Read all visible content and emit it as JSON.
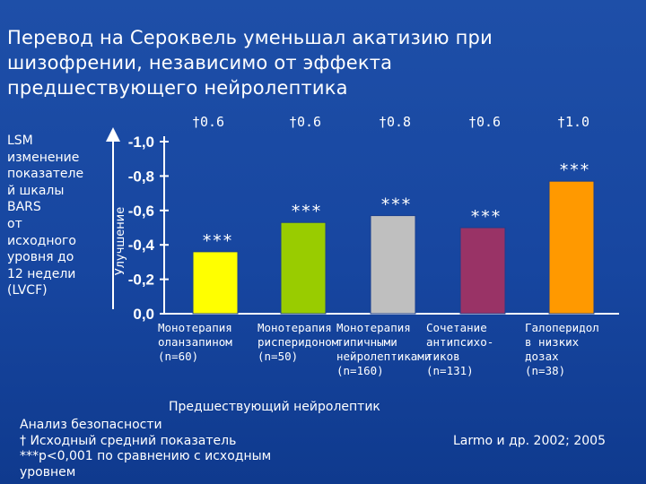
{
  "slide": {
    "title_lines": [
      "Перевод на Сероквель уменьшал акатизию при",
      "шизофрении, независимо от эффекта",
      "предшествующего нейролептика"
    ],
    "ylabel_lines": [
      "LSM",
      "изменение",
      "показателе",
      "й шкалы",
      "BARS",
      "от",
      "исходного",
      "уровня до",
      "12 недели",
      "(LVCF)"
    ],
    "improvement_label": "Улучшение",
    "previous_label": "Предшествующий нейролептик",
    "footer_lines": [
      "Анализ безопасности",
      "† Исходный средний показатель",
      "***p<0,001 по сравнению с исходным",
      "уровнем"
    ],
    "source": "Larmo и др. 2002; 2005"
  },
  "chart_data": {
    "type": "bar",
    "ylim": [
      0.0,
      -1.0
    ],
    "yticks": [
      "-1,0",
      "-0,8",
      "-0,6",
      "-0,4",
      "-0,2",
      "0,0"
    ],
    "ytick_values": [
      -1.0,
      -0.8,
      -0.6,
      -0.4,
      -0.2,
      0.0
    ],
    "categories": [
      {
        "lines": [
          "Монотерапия",
          "оланзапином",
          "(n=60)"
        ],
        "value": -0.36,
        "color": "#ffff00",
        "baseline": "†0.6",
        "significance": "***"
      },
      {
        "lines": [
          "Монотерапия",
          "рисперидоном",
          "(n=50)"
        ],
        "value": -0.53,
        "color": "#99cc00",
        "baseline": "†0.6",
        "significance": "***"
      },
      {
        "lines": [
          "Монотерапия",
          "типичными",
          "нейролептиками",
          "(n=160)"
        ],
        "value": -0.57,
        "color": "#bfbfbf",
        "baseline": "†0.8",
        "significance": "***"
      },
      {
        "lines": [
          "Сочетание",
          "антипсихо-",
          "тиков",
          "(n=131)"
        ],
        "value": -0.5,
        "color": "#993366",
        "baseline": "†0.6",
        "significance": "***"
      },
      {
        "lines": [
          "Галоперидол",
          "в низких",
          "дозах",
          "(n=38)"
        ],
        "value": -0.77,
        "color": "#ff9900",
        "baseline": "†1.0",
        "significance": "***"
      }
    ]
  }
}
